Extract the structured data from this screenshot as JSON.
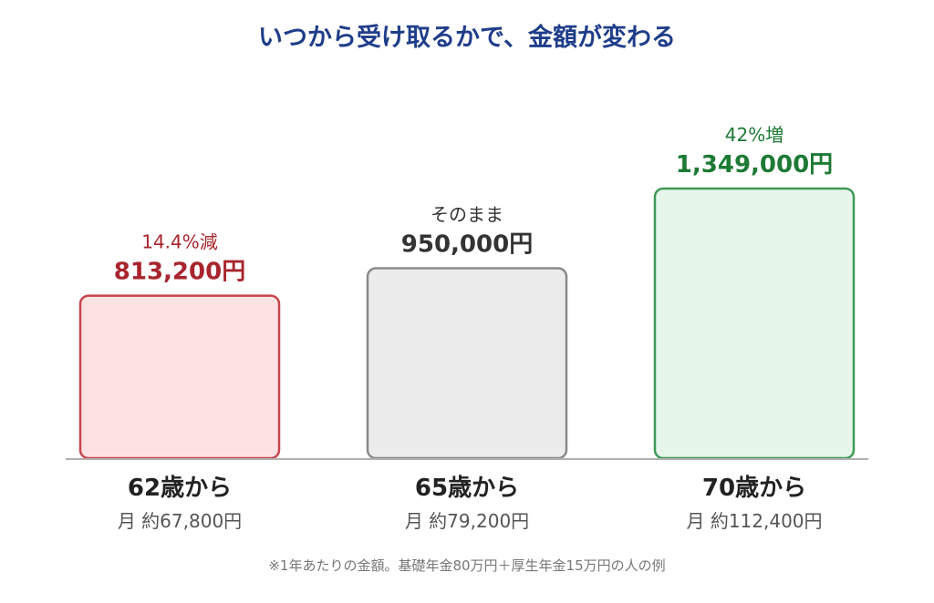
{
  "chart_data": {
    "type": "bar",
    "title": "いつから受け取るかで、金額が変わる",
    "categories": [
      "62歳から",
      "65歳から",
      "70歳から"
    ],
    "values": [
      813200,
      950000,
      1349000
    ],
    "value_labels": [
      "813,200円",
      "950,000円",
      "1,349,000円"
    ],
    "change_labels": [
      "14.4%減",
      "そのまま",
      "42%増"
    ],
    "monthly_labels": [
      "月 約67,800円",
      "月 約79,200円",
      "月 約112,400円"
    ],
    "footnote": "※1年あたりの金額。基礎年金80万円＋厚生年金15万円の人の例",
    "colors": {
      "title": "#1f3d8a",
      "axis": "#b0b0b0",
      "category_text": "#222222",
      "monthly_text": "#555555",
      "footnote_text": "#777777",
      "bars": [
        {
          "fill": "#fde2e3",
          "stroke": "#c8454d",
          "label": "#a8252d"
        },
        {
          "fill": "#ececec",
          "stroke": "#8a8a8a",
          "label": "#333333"
        },
        {
          "fill": "#e6f6ea",
          "stroke": "#3f9a56",
          "label": "#1d7a35"
        }
      ]
    }
  }
}
